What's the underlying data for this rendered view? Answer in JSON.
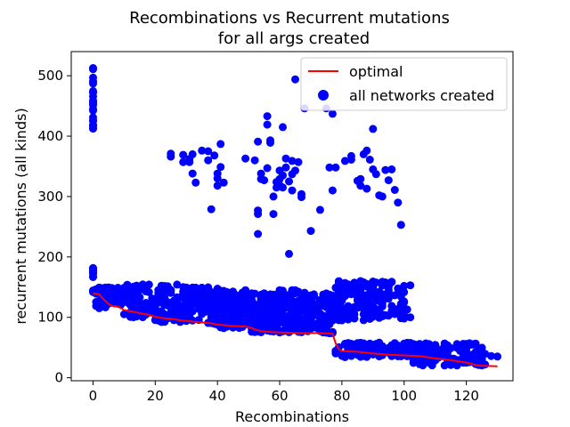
{
  "chart_data": {
    "type": "scatter",
    "title": "Recombinations vs Recurrent mutations",
    "subtitle": "for all args created",
    "xlabel": "Recombinations",
    "ylabel": "recurrent mutations (all kinds)",
    "xlim": [
      -7,
      135
    ],
    "ylim": [
      -5,
      540
    ],
    "xticks": [
      0,
      20,
      40,
      60,
      80,
      100,
      120
    ],
    "yticks": [
      0,
      100,
      200,
      300,
      400,
      500
    ],
    "grid": false,
    "legend_position": "top-right",
    "colors": {
      "optimal": "#ff0000",
      "networks": "#0000ff"
    },
    "series": [
      {
        "name": "optimal",
        "kind": "line",
        "points": [
          [
            0,
            140
          ],
          [
            2,
            138
          ],
          [
            3,
            132
          ],
          [
            4,
            127
          ],
          [
            5,
            122
          ],
          [
            6,
            119
          ],
          [
            8,
            118
          ],
          [
            9,
            115
          ],
          [
            10,
            112
          ],
          [
            12,
            110
          ],
          [
            14,
            108
          ],
          [
            16,
            106
          ],
          [
            18,
            104
          ],
          [
            20,
            101
          ],
          [
            22,
            99
          ],
          [
            24,
            98
          ],
          [
            26,
            97
          ],
          [
            28,
            95
          ],
          [
            30,
            94
          ],
          [
            32,
            93
          ],
          [
            34,
            92
          ],
          [
            36,
            91
          ],
          [
            38,
            90
          ],
          [
            40,
            88
          ],
          [
            44,
            86
          ],
          [
            48,
            85
          ],
          [
            50,
            84
          ],
          [
            52,
            80
          ],
          [
            54,
            77
          ],
          [
            56,
            76
          ],
          [
            60,
            75
          ],
          [
            66,
            74
          ],
          [
            72,
            74
          ],
          [
            77,
            73
          ],
          [
            78,
            57
          ],
          [
            79,
            47
          ],
          [
            80,
            44
          ],
          [
            85,
            43
          ],
          [
            90,
            40
          ],
          [
            95,
            38
          ],
          [
            100,
            37
          ],
          [
            105,
            36
          ],
          [
            110,
            32
          ],
          [
            115,
            29
          ],
          [
            120,
            25
          ],
          [
            124,
            20
          ],
          [
            130,
            19
          ]
        ]
      },
      {
        "name": "all networks created",
        "kind": "scatter",
        "clusters": [
          {
            "x": [
              0,
              0
            ],
            "y": [
              402,
              515
            ],
            "n": 22
          },
          {
            "x": [
              0,
              0
            ],
            "y": [
              138,
              185
            ],
            "n": 14
          },
          {
            "x": [
              1,
              10
            ],
            "y": [
              115,
              150
            ],
            "n": 70
          },
          {
            "x": [
              10,
              20
            ],
            "y": [
              100,
              155
            ],
            "n": 80
          },
          {
            "x": [
              20,
              30
            ],
            "y": [
              92,
              155
            ],
            "n": 85
          },
          {
            "x": [
              30,
              40
            ],
            "y": [
              88,
              150
            ],
            "n": 100
          },
          {
            "x": [
              40,
              50
            ],
            "y": [
              82,
              145
            ],
            "n": 140
          },
          {
            "x": [
              50,
              60
            ],
            "y": [
              75,
              140
            ],
            "n": 140
          },
          {
            "x": [
              60,
              70
            ],
            "y": [
              75,
              145
            ],
            "n": 140
          },
          {
            "x": [
              70,
              78
            ],
            "y": [
              72,
              140
            ],
            "n": 90
          },
          {
            "x": [
              78,
              100
            ],
            "y": [
              95,
              160
            ],
            "n": 170
          },
          {
            "x": [
              78,
              103
            ],
            "y": [
              34,
              58
            ],
            "n": 130
          },
          {
            "x": [
              103,
              126
            ],
            "y": [
              20,
              58
            ],
            "n": 120
          }
        ],
        "points": [
          [
            40,
            88
          ],
          [
            48,
            85
          ],
          [
            52,
            82
          ],
          [
            57,
            78
          ],
          [
            66,
            76
          ],
          [
            74,
            75
          ],
          [
            85,
            48
          ],
          [
            90,
            46
          ],
          [
            95,
            45
          ],
          [
            100,
            40
          ],
          [
            128,
            36
          ],
          [
            130,
            35
          ],
          [
            102,
            100
          ],
          [
            101,
            113
          ],
          [
            100,
            152
          ],
          [
            102,
            153
          ],
          [
            25,
            366
          ],
          [
            25,
            371
          ],
          [
            29,
            369
          ],
          [
            29,
            357
          ],
          [
            31,
            357
          ],
          [
            31,
            362
          ],
          [
            32,
            370
          ],
          [
            32,
            338
          ],
          [
            33,
            323
          ],
          [
            35,
            376
          ],
          [
            37,
            375
          ],
          [
            37,
            360
          ],
          [
            38,
            279
          ],
          [
            39,
            368
          ],
          [
            40,
            338
          ],
          [
            40,
            330
          ],
          [
            41,
            349
          ],
          [
            41,
            387
          ],
          [
            40,
            318
          ],
          [
            42,
            323
          ],
          [
            49,
            363
          ],
          [
            52,
            360
          ],
          [
            53,
            391
          ],
          [
            53,
            277
          ],
          [
            53,
            271
          ],
          [
            53,
            238
          ],
          [
            54,
            329
          ],
          [
            54,
            338
          ],
          [
            55,
            327
          ],
          [
            56,
            433
          ],
          [
            56,
            419
          ],
          [
            56,
            347
          ],
          [
            57,
            393
          ],
          [
            57,
            389
          ],
          [
            58,
            300
          ],
          [
            58,
            271
          ],
          [
            59,
            315
          ],
          [
            59,
            324
          ],
          [
            60,
            343
          ],
          [
            60,
            329
          ],
          [
            60,
            319
          ],
          [
            61,
            415
          ],
          [
            61,
            335
          ],
          [
            61,
            315
          ],
          [
            62,
            363
          ],
          [
            62,
            348
          ],
          [
            63,
            205
          ],
          [
            63,
            325
          ],
          [
            64,
            359
          ],
          [
            64,
            337
          ],
          [
            64,
            310
          ],
          [
            65,
            494
          ],
          [
            65,
            343
          ],
          [
            66,
            357
          ],
          [
            67,
            304
          ],
          [
            67,
            299
          ],
          [
            68,
            446
          ],
          [
            70,
            243
          ],
          [
            73,
            278
          ],
          [
            75,
            446
          ],
          [
            76,
            348
          ],
          [
            77,
            437
          ],
          [
            77,
            310
          ],
          [
            78,
            348
          ],
          [
            81,
            359
          ],
          [
            83,
            361
          ],
          [
            83,
            367
          ],
          [
            85,
            326
          ],
          [
            86,
            329
          ],
          [
            86,
            318
          ],
          [
            87,
            370
          ],
          [
            88,
            376
          ],
          [
            88,
            313
          ],
          [
            89,
            361
          ],
          [
            90,
            345
          ],
          [
            90,
            412
          ],
          [
            91,
            337
          ],
          [
            92,
            302
          ],
          [
            93,
            300
          ],
          [
            94,
            344
          ],
          [
            95,
            327
          ],
          [
            96,
            345
          ],
          [
            97,
            311
          ],
          [
            98,
            290
          ],
          [
            99,
            253
          ]
        ]
      }
    ]
  }
}
